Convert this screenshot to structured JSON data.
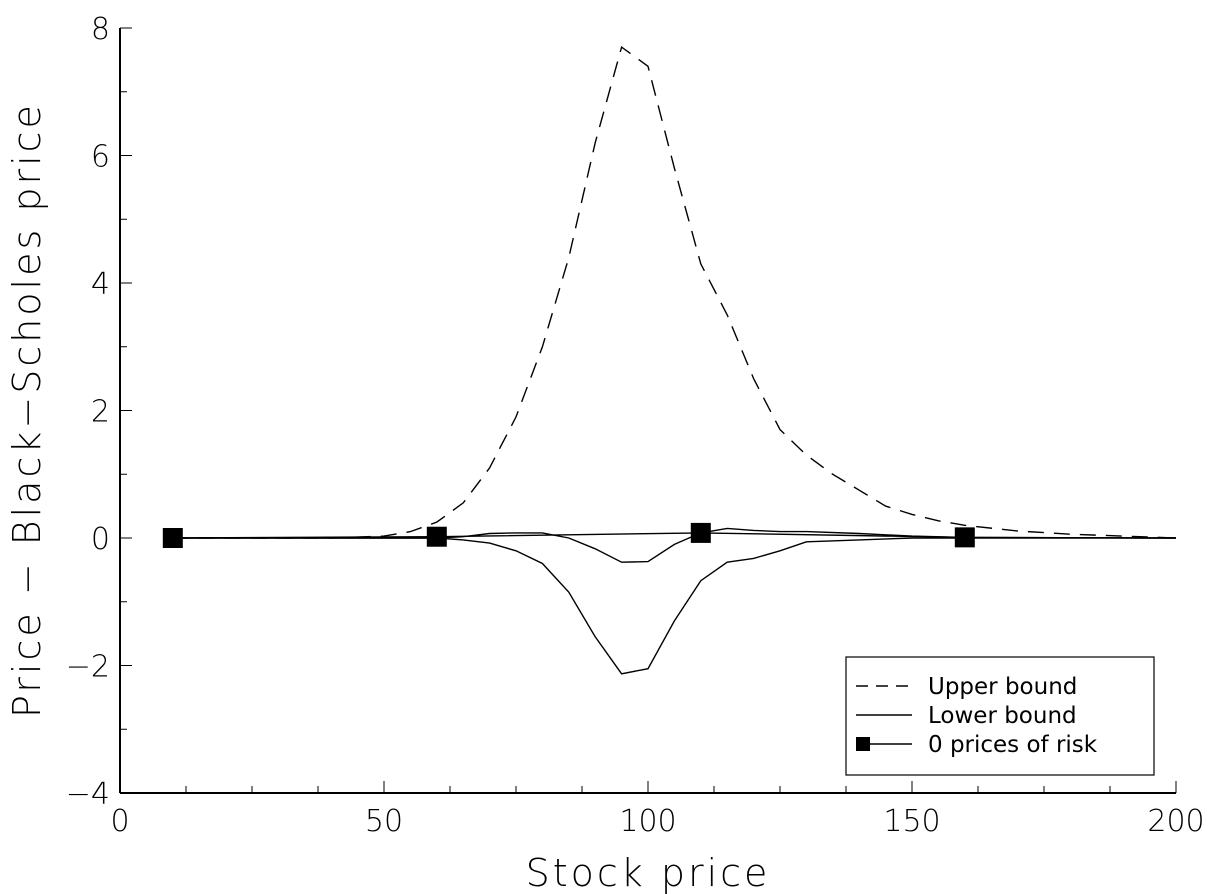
{
  "chart_data": {
    "type": "line",
    "title": "",
    "xlabel": "Stock price",
    "ylabel": "Price − Black−Scholes price",
    "xlim": [
      0,
      200
    ],
    "ylim": [
      -4,
      8
    ],
    "x_ticks": [
      0,
      50,
      100,
      150,
      200
    ],
    "x_tick_labels": [
      "0",
      "50",
      "100",
      "150",
      "200"
    ],
    "y_ticks": [
      -4,
      -2,
      0,
      2,
      4,
      6,
      8
    ],
    "y_tick_labels": [
      "−4",
      "−2",
      "0",
      "2",
      "4",
      "6",
      "8"
    ],
    "grid": false,
    "legend_position": "bottom-right",
    "series": [
      {
        "name": "Upper bound",
        "style": "dashed",
        "x": [
          10,
          40,
          50,
          55,
          60,
          65,
          70,
          75,
          80,
          85,
          90,
          95,
          100,
          105,
          110,
          115,
          120,
          125,
          130,
          135,
          140,
          145,
          150,
          155,
          160,
          170,
          180,
          190,
          200
        ],
        "y": [
          0.0,
          0.0,
          0.03,
          0.1,
          0.25,
          0.55,
          1.1,
          1.9,
          3.0,
          4.4,
          6.2,
          7.7,
          7.4,
          5.8,
          4.3,
          3.5,
          2.5,
          1.7,
          1.3,
          1.0,
          0.75,
          0.5,
          0.37,
          0.27,
          0.2,
          0.11,
          0.06,
          0.03,
          0.0
        ]
      },
      {
        "name": "Lower bound",
        "style": "solid",
        "x": [
          10,
          60,
          65,
          70,
          75,
          80,
          85,
          90,
          95,
          100,
          105,
          110,
          115,
          120,
          125,
          130,
          140,
          150,
          160,
          200
        ],
        "y": [
          0.0,
          0.0,
          0.02,
          0.07,
          0.08,
          0.08,
          0.0,
          -0.17,
          -0.38,
          -0.37,
          -0.1,
          0.08,
          0.15,
          0.12,
          0.1,
          0.1,
          0.07,
          0.03,
          0.01,
          0.0
        ]
      },
      {
        "name": "Lower bound",
        "style": "solid",
        "x": [
          10,
          60,
          65,
          70,
          75,
          80,
          85,
          90,
          95,
          100,
          105,
          110,
          115,
          120,
          125,
          130,
          140,
          150,
          160,
          200
        ],
        "y": [
          0.0,
          0.0,
          -0.03,
          -0.08,
          -0.2,
          -0.4,
          -0.85,
          -1.55,
          -2.13,
          -2.05,
          -1.3,
          -0.67,
          -0.38,
          -0.32,
          -0.2,
          -0.06,
          -0.03,
          0.0,
          0.0,
          0.0
        ]
      },
      {
        "name": "0 prices of risk",
        "style": "solid-marker",
        "x": [
          10,
          60,
          110,
          160,
          200
        ],
        "y": [
          0.0,
          0.02,
          0.08,
          0.01,
          0.0
        ],
        "markers": [
          10,
          60,
          110,
          160
        ]
      }
    ],
    "legend": [
      {
        "label": "Upper bound",
        "style": "dashed"
      },
      {
        "label": "Lower bound",
        "style": "solid"
      },
      {
        "label": "0 prices of risk",
        "style": "solid-marker"
      }
    ],
    "colors": {
      "line": "#000000",
      "background": "#ffffff"
    }
  }
}
